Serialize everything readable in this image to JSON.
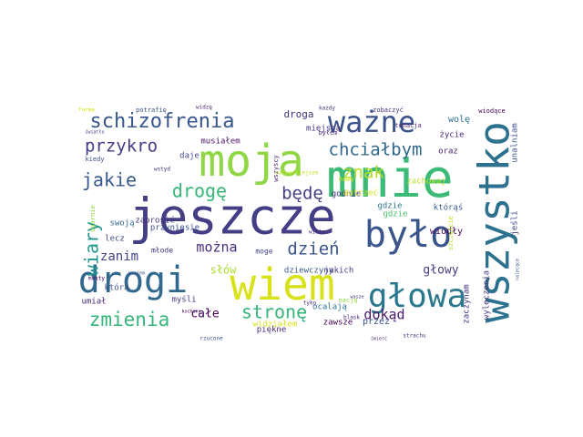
{
  "words": [
    {
      "text": "jeszcze",
      "color": "#433e85"
    },
    {
      "text": "mnie",
      "color": "#3bbb75"
    },
    {
      "text": "moja",
      "color": "#8fd744"
    },
    {
      "text": "wszystko",
      "color": "#2c728e"
    },
    {
      "text": "wiem",
      "color": "#d8e219"
    },
    {
      "text": "było",
      "color": "#3a548c"
    },
    {
      "text": "drogi",
      "color": "#31688e"
    },
    {
      "text": "głowa",
      "color": "#2a788e"
    },
    {
      "text": "ważne",
      "color": "#3b528b"
    },
    {
      "text": "schizofrenia",
      "color": "#39568c"
    },
    {
      "text": "zmienia",
      "color": "#35b779"
    },
    {
      "text": "chciałbym",
      "color": "#31688e"
    },
    {
      "text": "przykro",
      "color": "#433e85"
    },
    {
      "text": "drogę",
      "color": "#35b779"
    },
    {
      "text": "jakie",
      "color": "#38588c"
    },
    {
      "text": "będę",
      "color": "#433e85"
    },
    {
      "text": "znak",
      "color": "#b5de2b"
    },
    {
      "text": "można",
      "color": "#472d7b"
    },
    {
      "text": "dzień",
      "color": "#3b528b"
    },
    {
      "text": "stronę",
      "color": "#34b679"
    },
    {
      "text": "wiary",
      "color": "#1f988b"
    },
    {
      "text": "dokąd",
      "color": "#48186a"
    },
    {
      "text": "zanim",
      "color": "#414487"
    },
    {
      "text": "słów",
      "color": "#addc30"
    },
    {
      "text": "całe",
      "color": "#440154"
    },
    {
      "text": "głowy",
      "color": "#443983"
    },
    {
      "text": "droga",
      "color": "#46337e"
    },
    {
      "text": "miejsca",
      "color": "#46327e"
    },
    {
      "text": "musiałem",
      "color": "#471063"
    },
    {
      "text": "daje",
      "color": "#3e4a89"
    },
    {
      "text": "wolę",
      "color": "#2d708e"
    },
    {
      "text": "życie",
      "color": "#482878"
    },
    {
      "text": "oraz",
      "color": "#482173"
    },
    {
      "text": "zachowaj",
      "color": "#b5de2b"
    },
    {
      "text": "gdzie",
      "color": "#4ac16d"
    },
    {
      "text": "gdzie",
      "color": "#2a788e"
    },
    {
      "text": "godnie",
      "color": "#482677"
    },
    {
      "text": "którąś",
      "color": "#38588c"
    },
    {
      "text": "wiodły",
      "color": "#440154"
    },
    {
      "text": "zaprosić",
      "color": "#46337e"
    },
    {
      "text": "przyniesie",
      "color": "#3b528b"
    },
    {
      "text": "swoją",
      "color": "#31688e"
    },
    {
      "text": "młode",
      "color": "#46327e"
    },
    {
      "text": "moge",
      "color": "#414487"
    },
    {
      "text": "lecz",
      "color": "#404688"
    },
    {
      "text": "dziewczyny",
      "color": "#38598c"
    },
    {
      "text": "jakich",
      "color": "#46337e"
    },
    {
      "text": "ocalają",
      "color": "#2c728e"
    },
    {
      "text": "dotrzeć",
      "color": "#d8e219"
    },
    {
      "text": "którą",
      "color": "#3b528b"
    },
    {
      "text": "myśli",
      "color": "#443983"
    },
    {
      "text": "umiał",
      "color": "#482878"
    },
    {
      "text": "piękne",
      "color": "#482878"
    },
    {
      "text": "widziałem",
      "color": "#d8e219"
    },
    {
      "text": "zawsze",
      "color": "#440154"
    },
    {
      "text": "przez",
      "color": "#3b528b"
    },
    {
      "text": "zaczynam",
      "color": "#472d7b"
    },
    {
      "text": "wyleczenia",
      "color": "#46337e"
    },
    {
      "text": "jeśli",
      "color": "#3f4788"
    },
    {
      "text": "unalniam",
      "color": "#3b528b"
    },
    {
      "text": "potrafię",
      "color": "#3b528b"
    },
    {
      "text": "widzę",
      "color": "#482878"
    },
    {
      "text": "zobaczyć",
      "color": "#46327e"
    },
    {
      "text": "wiodące",
      "color": "#440154"
    },
    {
      "text": "tonacja",
      "color": "#482878"
    },
    {
      "text": "byłem",
      "color": "#472d7b"
    },
    {
      "text": "kiedy",
      "color": "#3e4a89"
    },
    {
      "text": "wstyd",
      "color": "#46327e"
    },
    {
      "text": "nowę",
      "color": "#d8e219"
    },
    {
      "text": "wiatr",
      "color": "#482878"
    },
    {
      "text": "mosty",
      "color": "#440154"
    },
    {
      "text": "rzucone",
      "color": "#3b528b"
    },
    {
      "text": "tyko",
      "color": "#46327e"
    },
    {
      "text": "blask",
      "color": "#482878"
    },
    {
      "text": "strachu",
      "color": "#46327e"
    },
    {
      "text": "śmierć",
      "color": "#482878"
    },
    {
      "text": "każdy",
      "color": "#46327e"
    },
    {
      "text": "forme",
      "color": "#d8e219"
    },
    {
      "text": "światło",
      "color": "#46327e"
    },
    {
      "text": "ogarnie",
      "color": "#90d743"
    },
    {
      "text": "wszyscy",
      "color": "#482878"
    },
    {
      "text": "najważniejsze",
      "color": "#bddf26"
    },
    {
      "text": "nacją",
      "color": "#90d743"
    },
    {
      "text": "szczęście",
      "color": "#bddf26"
    },
    {
      "text": "krajem",
      "color": "#3b528b"
    },
    {
      "text": "wasze",
      "color": "#46327e"
    },
    {
      "text": "kochany",
      "color": "#440154"
    },
    {
      "text": "nalecące",
      "color": "#3b528b"
    }
  ]
}
